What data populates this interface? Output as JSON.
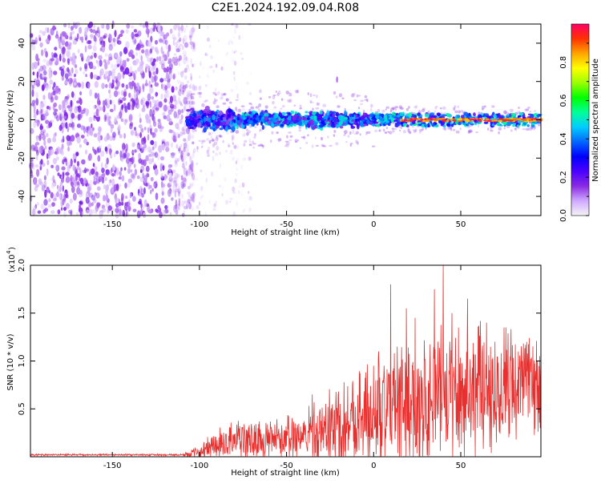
{
  "title": "C2E1.2024.192.09.04.R08",
  "colors": {
    "snr_line": "#e8302e",
    "axis": "#000000",
    "colormap": [
      "#f5f5f5",
      "#cfa9ff",
      "#8a2be2",
      "#4b00ff",
      "#0000ff",
      "#0066ff",
      "#00ccff",
      "#00ff99",
      "#00ff00",
      "#99ff00",
      "#ffff00",
      "#ffa500",
      "#ff3300",
      "#ff0066"
    ]
  },
  "chart_data": [
    {
      "type": "heatmap",
      "name": "spectrogram",
      "title": "C2E1.2024.192.09.04.R08",
      "xlabel": "Height of straight line (km)",
      "ylabel": "Frequency (Hz)",
      "xlim": [
        -197,
        96
      ],
      "ylim": [
        -50,
        50
      ],
      "xticks": [
        -150,
        -100,
        -50,
        0,
        50
      ],
      "xtick_labels": [
        "-150",
        "-100",
        "-50",
        "0",
        "50"
      ],
      "yticks": [
        -40,
        -20,
        0,
        20,
        40
      ],
      "ytick_labels": [
        "-40",
        "-20",
        "0",
        "20",
        "40"
      ],
      "colorbar": {
        "label": "Normalized spectral amplitude",
        "range": [
          0,
          1
        ],
        "ticks": [
          0.0,
          0.2,
          0.4,
          0.6,
          0.8
        ],
        "tick_labels": [
          "0.0",
          "0.2",
          "0.4",
          "0.6",
          "0.8"
        ]
      },
      "regions": [
        {
          "desc": "broadband noise",
          "x_range": [
            -197,
            -107
          ],
          "freq_range": [
            -50,
            50
          ],
          "amplitude": 0.15
        },
        {
          "desc": "onset band",
          "x_range": [
            -107,
            -80
          ],
          "freq_range": [
            -7,
            7
          ],
          "amplitude": 0.3
        },
        {
          "desc": "signal band",
          "x_range": [
            -80,
            0
          ],
          "freq_range": [
            -5,
            5
          ],
          "amplitude": 0.35
        },
        {
          "desc": "narrow line",
          "x_range": [
            0,
            96
          ],
          "freq_range": [
            -2,
            2
          ],
          "amplitude": 0.8
        }
      ]
    },
    {
      "type": "line",
      "name": "snr",
      "xlabel": "Height of straight line (km)",
      "ylabel": "SNR (10 * v/v)",
      "yscale_label": "(x10",
      "yscale_exponent": "4",
      "xlim": [
        -197,
        96
      ],
      "ylim": [
        0,
        2.0
      ],
      "xticks": [
        -150,
        -100,
        -50,
        0,
        50
      ],
      "xtick_labels": [
        "-150",
        "-100",
        "-50",
        "0",
        "50"
      ],
      "yticks": [
        0.5,
        1.0,
        1.5,
        2.0
      ],
      "ytick_labels": [
        "0.5",
        "1.0",
        "1.5",
        "2.0"
      ],
      "envelope": {
        "x": [
          -197,
          -110,
          -100,
          -90,
          -80,
          -70,
          -60,
          -50,
          -40,
          -30,
          -20,
          -10,
          0,
          10,
          20,
          30,
          40,
          50,
          60,
          70,
          80,
          96
        ],
        "mean": [
          0.02,
          0.02,
          0.05,
          0.12,
          0.16,
          0.16,
          0.17,
          0.2,
          0.22,
          0.27,
          0.33,
          0.38,
          0.45,
          0.5,
          0.55,
          0.6,
          0.65,
          0.68,
          0.7,
          0.72,
          0.72,
          0.75
        ],
        "amp": [
          0.01,
          0.01,
          0.08,
          0.18,
          0.22,
          0.22,
          0.2,
          0.25,
          0.28,
          0.4,
          0.45,
          0.55,
          0.6,
          0.65,
          0.7,
          0.75,
          0.75,
          0.75,
          0.72,
          0.7,
          0.65,
          0.5
        ]
      },
      "peaks": [
        {
          "x": 0,
          "y": 0.95
        },
        {
          "x": 3,
          "y": 1.1
        },
        {
          "x": 10,
          "y": 1.8
        },
        {
          "x": 19,
          "y": 1.55
        },
        {
          "x": 24,
          "y": 1.45
        },
        {
          "x": 35,
          "y": 1.75
        },
        {
          "x": 40,
          "y": 2.0
        },
        {
          "x": 45,
          "y": 1.5
        },
        {
          "x": 54,
          "y": 1.65
        },
        {
          "x": 65,
          "y": 1.4
        },
        {
          "x": 75,
          "y": 1.35
        },
        {
          "x": 88,
          "y": 1.2
        },
        {
          "x": -20,
          "y": 0.68
        },
        {
          "x": -35,
          "y": 0.65
        },
        {
          "x": -12,
          "y": 0.75
        }
      ]
    }
  ]
}
